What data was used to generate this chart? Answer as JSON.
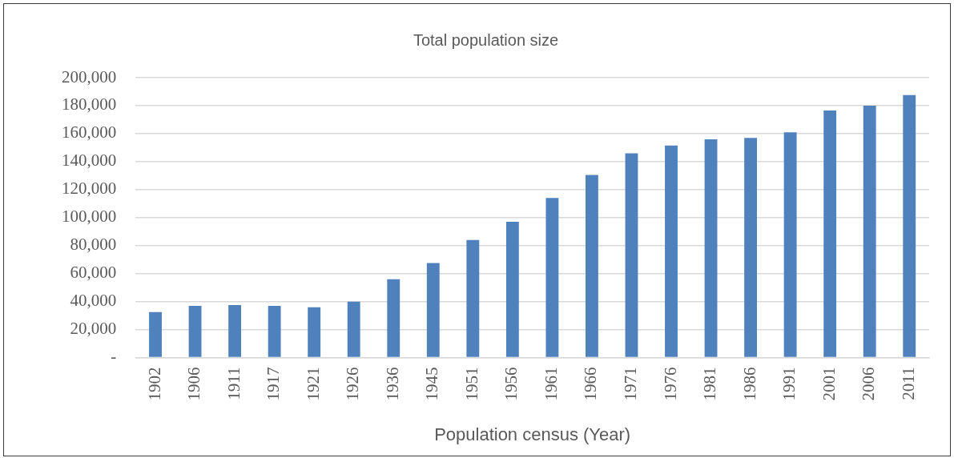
{
  "chart_data": {
    "type": "bar",
    "title": "Total population size",
    "xlabel": "Population census (Year)",
    "categories": [
      "1902",
      "1906",
      "1911",
      "1917",
      "1921",
      "1926",
      "1936",
      "1945",
      "1951",
      "1956",
      "1961",
      "1966",
      "1971",
      "1976",
      "1981",
      "1986",
      "1991",
      "2001",
      "2006",
      "2011"
    ],
    "values": [
      32500,
      37000,
      37500,
      37000,
      36000,
      40000,
      56000,
      67500,
      84000,
      97000,
      114000,
      130500,
      146000,
      151500,
      156000,
      157000,
      161000,
      176500,
      180000,
      187500
    ],
    "color": "#4f81bd",
    "ylim": [
      0,
      200000
    ],
    "yticks": [
      {
        "value": 0,
        "label": "-"
      },
      {
        "value": 20000,
        "label": "20,000"
      },
      {
        "value": 40000,
        "label": "40,000"
      },
      {
        "value": 60000,
        "label": "60,000"
      },
      {
        "value": 80000,
        "label": "80,000"
      },
      {
        "value": 100000,
        "label": "100,000"
      },
      {
        "value": 120000,
        "label": "120,000"
      },
      {
        "value": 140000,
        "label": "140,000"
      },
      {
        "value": 160000,
        "label": "160,000"
      },
      {
        "value": 180000,
        "label": "180,000"
      },
      {
        "value": 200000,
        "label": "200,000"
      }
    ],
    "grid": "y"
  }
}
